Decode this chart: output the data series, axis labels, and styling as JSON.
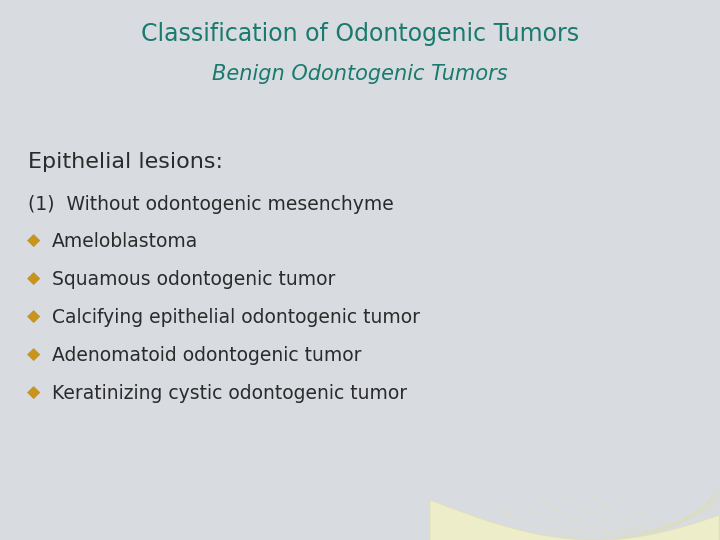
{
  "title_line1": "Classification of Odontogenic Tumors",
  "title_line2": "Benign Odontogenic Tumors",
  "title_color": "#1a7a6e",
  "title_fontsize": 17,
  "subtitle_fontsize": 15,
  "background_color": "#d8dbe0",
  "section_header": "Epithelial lesions:",
  "section_header_color": "#2b2b2b",
  "section_header_fontsize": 16,
  "numbered_item": "(1)  Without odontogenic mesenchyme",
  "numbered_item_color": "#2b2b2b",
  "numbered_item_fontsize": 13.5,
  "bullet_items": [
    "Ameloblastoma",
    "Squamous odontogenic tumor",
    "Calcifying epithelial odontogenic tumor",
    "Adenomatoid odontogenic tumor",
    "Keratinizing cystic odontogenic tumor"
  ],
  "bullet_color": "#c8941a",
  "bullet_text_color": "#2b2b2b",
  "bullet_fontsize": 13.5,
  "bullet_symbol": "◆",
  "tooth_facecolor": "#f0f0c8",
  "tooth_edgecolor": "#e0e0a8"
}
